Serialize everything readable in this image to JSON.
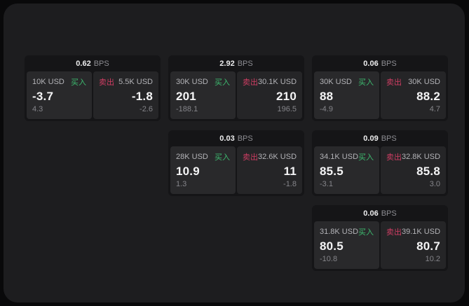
{
  "labels": {
    "buy": "买入",
    "sell": "卖出",
    "bps_unit": "BPS"
  },
  "colors": {
    "buy": "#3dba6f",
    "sell": "#cf3d63",
    "panel_bg": "#1d1d1f",
    "card_bg": "#151517",
    "tile_bg": "#27272a"
  },
  "cards": [
    {
      "row": 1,
      "col": 1,
      "bps": "0.62",
      "buy": {
        "notional": "10K USD",
        "price": "-3.7",
        "delta": "4.3"
      },
      "sell": {
        "notional": "5.5K USD",
        "price": "-1.8",
        "delta": "-2.6"
      }
    },
    {
      "row": 1,
      "col": 2,
      "bps": "2.92",
      "buy": {
        "notional": "30K USD",
        "price": "201",
        "delta": "-188.1"
      },
      "sell": {
        "notional": "30.1K USD",
        "price": "210",
        "delta": "196.5"
      }
    },
    {
      "row": 1,
      "col": 3,
      "bps": "0.06",
      "buy": {
        "notional": "30K USD",
        "price": "88",
        "delta": "-4.9"
      },
      "sell": {
        "notional": "30K USD",
        "price": "88.2",
        "delta": "4.7"
      }
    },
    {
      "row": 2,
      "col": 2,
      "bps": "0.03",
      "buy": {
        "notional": "28K USD",
        "price": "10.9",
        "delta": "1.3"
      },
      "sell": {
        "notional": "32.6K USD",
        "price": "11",
        "delta": "-1.8"
      }
    },
    {
      "row": 2,
      "col": 3,
      "bps": "0.09",
      "buy": {
        "notional": "34.1K USD",
        "price": "85.5",
        "delta": "-3.1"
      },
      "sell": {
        "notional": "32.8K USD",
        "price": "85.8",
        "delta": "3.0"
      }
    },
    {
      "row": 3,
      "col": 3,
      "bps": "0.06",
      "buy": {
        "notional": "31.8K USD",
        "price": "80.5",
        "delta": "-10.8"
      },
      "sell": {
        "notional": "39.1K USD",
        "price": "80.7",
        "delta": "10.2"
      }
    }
  ]
}
